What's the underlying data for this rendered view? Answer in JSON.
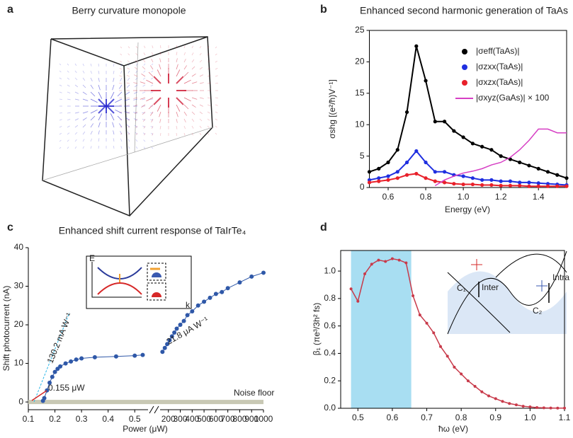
{
  "figure_a": {
    "label": "a",
    "title": "Berry curvature monopole"
  },
  "chart_data": [
    {
      "type": "scatter-line",
      "label": "b",
      "title": "Enhanced second harmonic generation of TaAs",
      "x_label": "Energy (eV)",
      "y_label": "σshg [(e²/ħ)V⁻¹]",
      "x": [
        0.5,
        0.55,
        0.6,
        0.65,
        0.7,
        0.75,
        0.8,
        0.85,
        0.9,
        0.95,
        1.0,
        1.05,
        1.1,
        1.15,
        1.2,
        1.25,
        1.3,
        1.35,
        1.4,
        1.45,
        1.5,
        1.55
      ],
      "series": [
        {
          "name": "|σeff(TaAs)|",
          "color": "#000000",
          "style": "points+line",
          "values": [
            2.5,
            3,
            4,
            6,
            12,
            22.5,
            17,
            10.5,
            10.5,
            9,
            8,
            7,
            6.5,
            6,
            5,
            4.5,
            4,
            3.5,
            3,
            2.5,
            2,
            1.5
          ]
        },
        {
          "name": "|σzxx(TaAs)|",
          "color": "#1f2fe0",
          "style": "points+line",
          "values": [
            1.2,
            1.5,
            1.8,
            2.5,
            4,
            5.8,
            4,
            2.5,
            2.5,
            2,
            1.8,
            1.5,
            1.2,
            1.2,
            1,
            1,
            0.8,
            0.8,
            0.7,
            0.6,
            0.5,
            0.4
          ]
        },
        {
          "name": "|σxzx(TaAs)|",
          "color": "#e8202a",
          "style": "points+line",
          "values": [
            0.8,
            1,
            1.2,
            1.5,
            2,
            2.2,
            1.5,
            1,
            0.8,
            0.6,
            0.5,
            0.5,
            0.4,
            0.4,
            0.3,
            0.3,
            0.3,
            0.2,
            0.2,
            0.2,
            0.2,
            0.2
          ]
        },
        {
          "name": "|σxyz(GaAs)| × 100",
          "color": "#d63fc4",
          "style": "line",
          "values": [
            null,
            null,
            null,
            null,
            null,
            null,
            null,
            0.3,
            1.2,
            1.8,
            2.3,
            2.6,
            3,
            3.6,
            4,
            4.8,
            6,
            7.5,
            9.3,
            9.3,
            8.7,
            8.7
          ]
        }
      ],
      "xlim": [
        0.5,
        1.55
      ],
      "xticks": [
        0.6,
        0.8,
        {
          "value": 1,
          "label": "1.0"
        },
        1.2,
        1.4
      ],
      "ylim": [
        0,
        25
      ],
      "yticks": [
        0,
        5,
        10,
        15,
        20,
        25
      ],
      "legend": "upper right"
    },
    {
      "type": "broken-axis-scatter",
      "label": "c",
      "title": "Enhanced shift current response of TaIrTe₄",
      "x_label": "Power (μW)",
      "y_label": "Shift photocurrent (nA)",
      "color": "#2f58a8",
      "ylim": [
        -2,
        40
      ],
      "yticks": [
        0,
        10,
        20,
        30,
        40
      ],
      "segments": [
        {
          "xlim": [
            0.1,
            0.55
          ],
          "xticks": [
            0.1,
            0.2,
            0.3,
            0.4,
            0.5
          ],
          "x": [
            0.155,
            0.16,
            0.17,
            0.18,
            0.19,
            0.2,
            0.21,
            0.22,
            0.24,
            0.26,
            0.28,
            0.3,
            0.35,
            0.43,
            0.5,
            0.53
          ],
          "values": [
            0.3,
            1,
            3,
            5,
            6.5,
            7.8,
            8.6,
            9.2,
            10,
            10.5,
            11,
            11.3,
            11.6,
            11.8,
            12,
            12.2
          ]
        },
        {
          "xlim": [
            130,
            1000
          ],
          "xticks": [
            200,
            300,
            400,
            500,
            600,
            700,
            800,
            900,
            1000
          ],
          "x": [
            150,
            170,
            190,
            210,
            230,
            250,
            270,
            300,
            330,
            360,
            400,
            450,
            500,
            550,
            600,
            650,
            700,
            800,
            900,
            1000
          ],
          "values": [
            13,
            14,
            15,
            16,
            17,
            18,
            19,
            20,
            21,
            22.5,
            23.5,
            25,
            26,
            27,
            28,
            28.5,
            29.5,
            31,
            32.5,
            33.5
          ]
        }
      ],
      "annotations": [
        "130.2 mA W⁻¹",
        "21.8 μA W⁻¹",
        "0.155 μW",
        "Noise floor"
      ],
      "inset_labels": [
        "E",
        "k"
      ]
    },
    {
      "type": "line",
      "label": "d",
      "x_label": "ħω (eV)",
      "y_label": "β₁ (πe³/3h² fs)",
      "color": "#c83a4a",
      "x": [
        0.48,
        0.5,
        0.52,
        0.54,
        0.56,
        0.58,
        0.6,
        0.62,
        0.64,
        0.66,
        0.68,
        0.7,
        0.72,
        0.74,
        0.76,
        0.78,
        0.8,
        0.82,
        0.84,
        0.86,
        0.88,
        0.9,
        0.92,
        0.94,
        0.96,
        0.98,
        1.0,
        1.02,
        1.04,
        1.06,
        1.08,
        1.1
      ],
      "values": [
        0.87,
        0.78,
        0.98,
        1.05,
        1.08,
        1.07,
        1.09,
        1.08,
        1.06,
        0.82,
        0.68,
        0.62,
        0.55,
        0.45,
        0.38,
        0.3,
        0.25,
        0.2,
        0.16,
        0.12,
        0.09,
        0.07,
        0.05,
        0.035,
        0.025,
        0.015,
        0.01,
        0.005,
        0.003,
        0.002,
        0.001,
        0.001
      ],
      "xlim": [
        0.45,
        1.1
      ],
      "xticks": [
        0.5,
        0.6,
        0.7,
        0.8,
        0.9,
        {
          "value": 1,
          "label": "1.0"
        },
        1.1
      ],
      "ylim": [
        0,
        1.15
      ],
      "yticks": [
        {
          "value": 0,
          "label": "0.0"
        },
        0.2,
        0.4,
        0.6,
        0.8,
        {
          "value": 1,
          "label": "1.0"
        }
      ],
      "shade": {
        "xlim": [
          0.48,
          0.655
        ],
        "color": "#a8def2"
      },
      "inset_labels": [
        "C₁",
        "Inter",
        "C₂",
        "Intra"
      ]
    }
  ]
}
